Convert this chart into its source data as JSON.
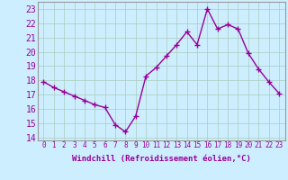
{
  "xlabel": "Windchill (Refroidissement éolien,°C)",
  "x": [
    0,
    1,
    2,
    3,
    4,
    5,
    6,
    7,
    8,
    9,
    10,
    11,
    12,
    13,
    14,
    15,
    16,
    17,
    18,
    19,
    20,
    21,
    22,
    23
  ],
  "y": [
    17.9,
    17.5,
    17.2,
    16.9,
    16.6,
    16.3,
    16.1,
    14.9,
    14.4,
    15.5,
    18.3,
    18.9,
    19.7,
    20.5,
    21.4,
    20.5,
    23.0,
    21.6,
    21.9,
    21.6,
    19.9,
    18.8,
    17.9,
    17.1
  ],
  "line_color": "#990099",
  "marker": "+",
  "marker_size": 4,
  "background_color": "#cceeff",
  "grid_color": "#aaccbb",
  "axis_color": "#888888",
  "tick_color": "#990099",
  "label_color": "#990099",
  "ylim": [
    13.8,
    23.5
  ],
  "yticks": [
    14,
    15,
    16,
    17,
    18,
    19,
    20,
    21,
    22,
    23
  ],
  "xticks": [
    0,
    1,
    2,
    3,
    4,
    5,
    6,
    7,
    8,
    9,
    10,
    11,
    12,
    13,
    14,
    15,
    16,
    17,
    18,
    19,
    20,
    21,
    22,
    23
  ],
  "xlabel_fontsize": 6.5,
  "ytick_fontsize": 7,
  "xtick_fontsize": 5.5,
  "linewidth": 1.0,
  "markeredgewidth": 1.0
}
